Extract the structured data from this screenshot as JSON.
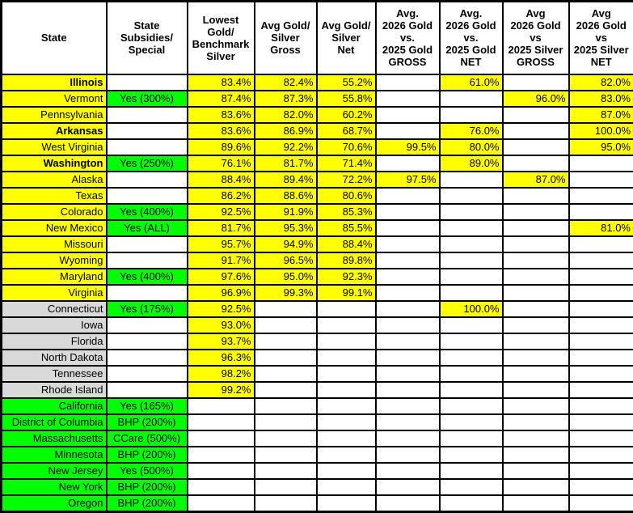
{
  "colors": {
    "highlight_yellow": "#FFFF00",
    "subsidy_green": "#00FF00",
    "state_gray": "#D9D9D9",
    "cell_white": "#FFFFFF",
    "grid_border": "#000000"
  },
  "table": {
    "headers": [
      {
        "id": "state",
        "label": "State"
      },
      {
        "id": "subsidy",
        "label": "State\nSubsidies/\nSpecial"
      },
      {
        "id": "lowest",
        "label": "Lowest\nGold/\nBenchmark\nSilver"
      },
      {
        "id": "avg_gross",
        "label": "Avg Gold/\nSilver\nGross"
      },
      {
        "id": "avg_net",
        "label": "Avg Gold/\nSilver\nNet"
      },
      {
        "id": "gold_gross",
        "label": "Avg.\n2026 Gold\nvs.\n2025 Gold\nGROSS"
      },
      {
        "id": "gold_net",
        "label": "Avg.\n2026 Gold\nvs.\n2025 Gold\nNET"
      },
      {
        "id": "silver_gross",
        "label": "Avg\n2026 Gold\nvs\n2025 Silver\nGROSS"
      },
      {
        "id": "silver_net",
        "label": "Avg\n2026 Gold\nvs\n2025 Silver\nNET"
      }
    ],
    "value_columns": [
      "lowest",
      "avg_gross",
      "avg_net",
      "gold_gross",
      "gold_net",
      "silver_gross",
      "silver_net"
    ],
    "rows": [
      {
        "state": "Illinois",
        "bold": true,
        "state_bg": "yellow",
        "subsidy": "",
        "values": [
          "83.4%",
          "82.4%",
          "55.2%",
          "",
          "61.0%",
          "",
          "82.0%"
        ]
      },
      {
        "state": "Vermont",
        "bold": false,
        "state_bg": "yellow",
        "subsidy": "Yes (300%)",
        "values": [
          "87.4%",
          "87.3%",
          "55.8%",
          "",
          "",
          "96.0%",
          "83.0%"
        ]
      },
      {
        "state": "Pennsylvania",
        "bold": false,
        "state_bg": "yellow",
        "subsidy": "",
        "values": [
          "83.6%",
          "82.0%",
          "60.2%",
          "",
          "",
          "",
          "87.0%"
        ]
      },
      {
        "state": "Arkansas",
        "bold": true,
        "state_bg": "yellow",
        "subsidy": "",
        "values": [
          "83.6%",
          "86.9%",
          "68.7%",
          "",
          "76.0%",
          "",
          "100.0%"
        ]
      },
      {
        "state": "West Virginia",
        "bold": false,
        "state_bg": "yellow",
        "subsidy": "",
        "values": [
          "89.6%",
          "92.2%",
          "70.6%",
          "99.5%",
          "80.0%",
          "",
          "95.0%"
        ]
      },
      {
        "state": "Washington",
        "bold": true,
        "state_bg": "yellow",
        "subsidy": "Yes (250%)",
        "values": [
          "76.1%",
          "81.7%",
          "71.4%",
          "",
          "89.0%",
          "",
          ""
        ]
      },
      {
        "state": "Alaska",
        "bold": false,
        "state_bg": "yellow",
        "subsidy": "",
        "values": [
          "88.4%",
          "89.4%",
          "72.2%",
          "97.5%",
          "",
          "87.0%",
          ""
        ]
      },
      {
        "state": "Texas",
        "bold": false,
        "state_bg": "yellow",
        "subsidy": "",
        "values": [
          "86.2%",
          "88.6%",
          "80.6%",
          "",
          "",
          "",
          ""
        ]
      },
      {
        "state": "Colorado",
        "bold": false,
        "state_bg": "yellow",
        "subsidy": "Yes (400%)",
        "values": [
          "92.5%",
          "91.9%",
          "85.3%",
          "",
          "",
          "",
          ""
        ]
      },
      {
        "state": "New Mexico",
        "bold": false,
        "state_bg": "yellow",
        "subsidy": "Yes (ALL)",
        "values": [
          "81.7%",
          "95.3%",
          "85.5%",
          "",
          "",
          "",
          "81.0%"
        ]
      },
      {
        "state": "Missouri",
        "bold": false,
        "state_bg": "yellow",
        "subsidy": "",
        "values": [
          "95.7%",
          "94.9%",
          "88.4%",
          "",
          "",
          "",
          ""
        ]
      },
      {
        "state": "Wyoming",
        "bold": false,
        "state_bg": "yellow",
        "subsidy": "",
        "values": [
          "91.7%",
          "96.5%",
          "89.8%",
          "",
          "",
          "",
          ""
        ]
      },
      {
        "state": "Maryland",
        "bold": false,
        "state_bg": "yellow",
        "subsidy": "Yes (400%)",
        "values": [
          "97.6%",
          "95.0%",
          "92.3%",
          "",
          "",
          "",
          ""
        ]
      },
      {
        "state": "Virginia",
        "bold": false,
        "state_bg": "yellow",
        "subsidy": "",
        "values": [
          "96.9%",
          "99.3%",
          "99.1%",
          "",
          "",
          "",
          ""
        ]
      },
      {
        "state": "Connecticut",
        "bold": false,
        "state_bg": "gray",
        "subsidy": "Yes (175%)",
        "values": [
          "92.5%",
          "",
          "",
          "",
          "100.0%",
          "",
          ""
        ]
      },
      {
        "state": "Iowa",
        "bold": false,
        "state_bg": "gray",
        "subsidy": "",
        "values": [
          "93.0%",
          "",
          "",
          "",
          "",
          "",
          ""
        ]
      },
      {
        "state": "Florida",
        "bold": false,
        "state_bg": "gray",
        "subsidy": "",
        "values": [
          "93.7%",
          "",
          "",
          "",
          "",
          "",
          ""
        ]
      },
      {
        "state": "North Dakota",
        "bold": false,
        "state_bg": "gray",
        "subsidy": "",
        "values": [
          "96.3%",
          "",
          "",
          "",
          "",
          "",
          ""
        ]
      },
      {
        "state": "Tennessee",
        "bold": false,
        "state_bg": "gray",
        "subsidy": "",
        "values": [
          "98.2%",
          "",
          "",
          "",
          "",
          "",
          ""
        ]
      },
      {
        "state": "Rhode Island",
        "bold": false,
        "state_bg": "gray",
        "subsidy": "",
        "values": [
          "99.2%",
          "",
          "",
          "",
          "",
          "",
          ""
        ]
      },
      {
        "state": "California",
        "bold": false,
        "state_bg": "green",
        "subsidy": "Yes (165%)",
        "values": [
          "",
          "",
          "",
          "",
          "",
          "",
          ""
        ]
      },
      {
        "state": "District of Columbia",
        "bold": false,
        "state_bg": "green",
        "subsidy": "BHP (200%)",
        "values": [
          "",
          "",
          "",
          "",
          "",
          "",
          ""
        ]
      },
      {
        "state": "Massachusetts",
        "bold": false,
        "state_bg": "green",
        "subsidy": "CCare (500%)",
        "values": [
          "",
          "",
          "",
          "",
          "",
          "",
          ""
        ]
      },
      {
        "state": "Minnesota",
        "bold": false,
        "state_bg": "green",
        "subsidy": "BHP (200%)",
        "values": [
          "",
          "",
          "",
          "",
          "",
          "",
          ""
        ]
      },
      {
        "state": "New Jersey",
        "bold": false,
        "state_bg": "green",
        "subsidy": "Yes (500%)",
        "values": [
          "",
          "",
          "",
          "",
          "",
          "",
          ""
        ]
      },
      {
        "state": "New York",
        "bold": false,
        "state_bg": "green",
        "subsidy": "BHP (200%)",
        "values": [
          "",
          "",
          "",
          "",
          "",
          "",
          ""
        ]
      },
      {
        "state": "Oregon",
        "bold": false,
        "state_bg": "green",
        "subsidy": "BHP (200%)",
        "values": [
          "",
          "",
          "",
          "",
          "",
          "",
          ""
        ]
      }
    ]
  }
}
